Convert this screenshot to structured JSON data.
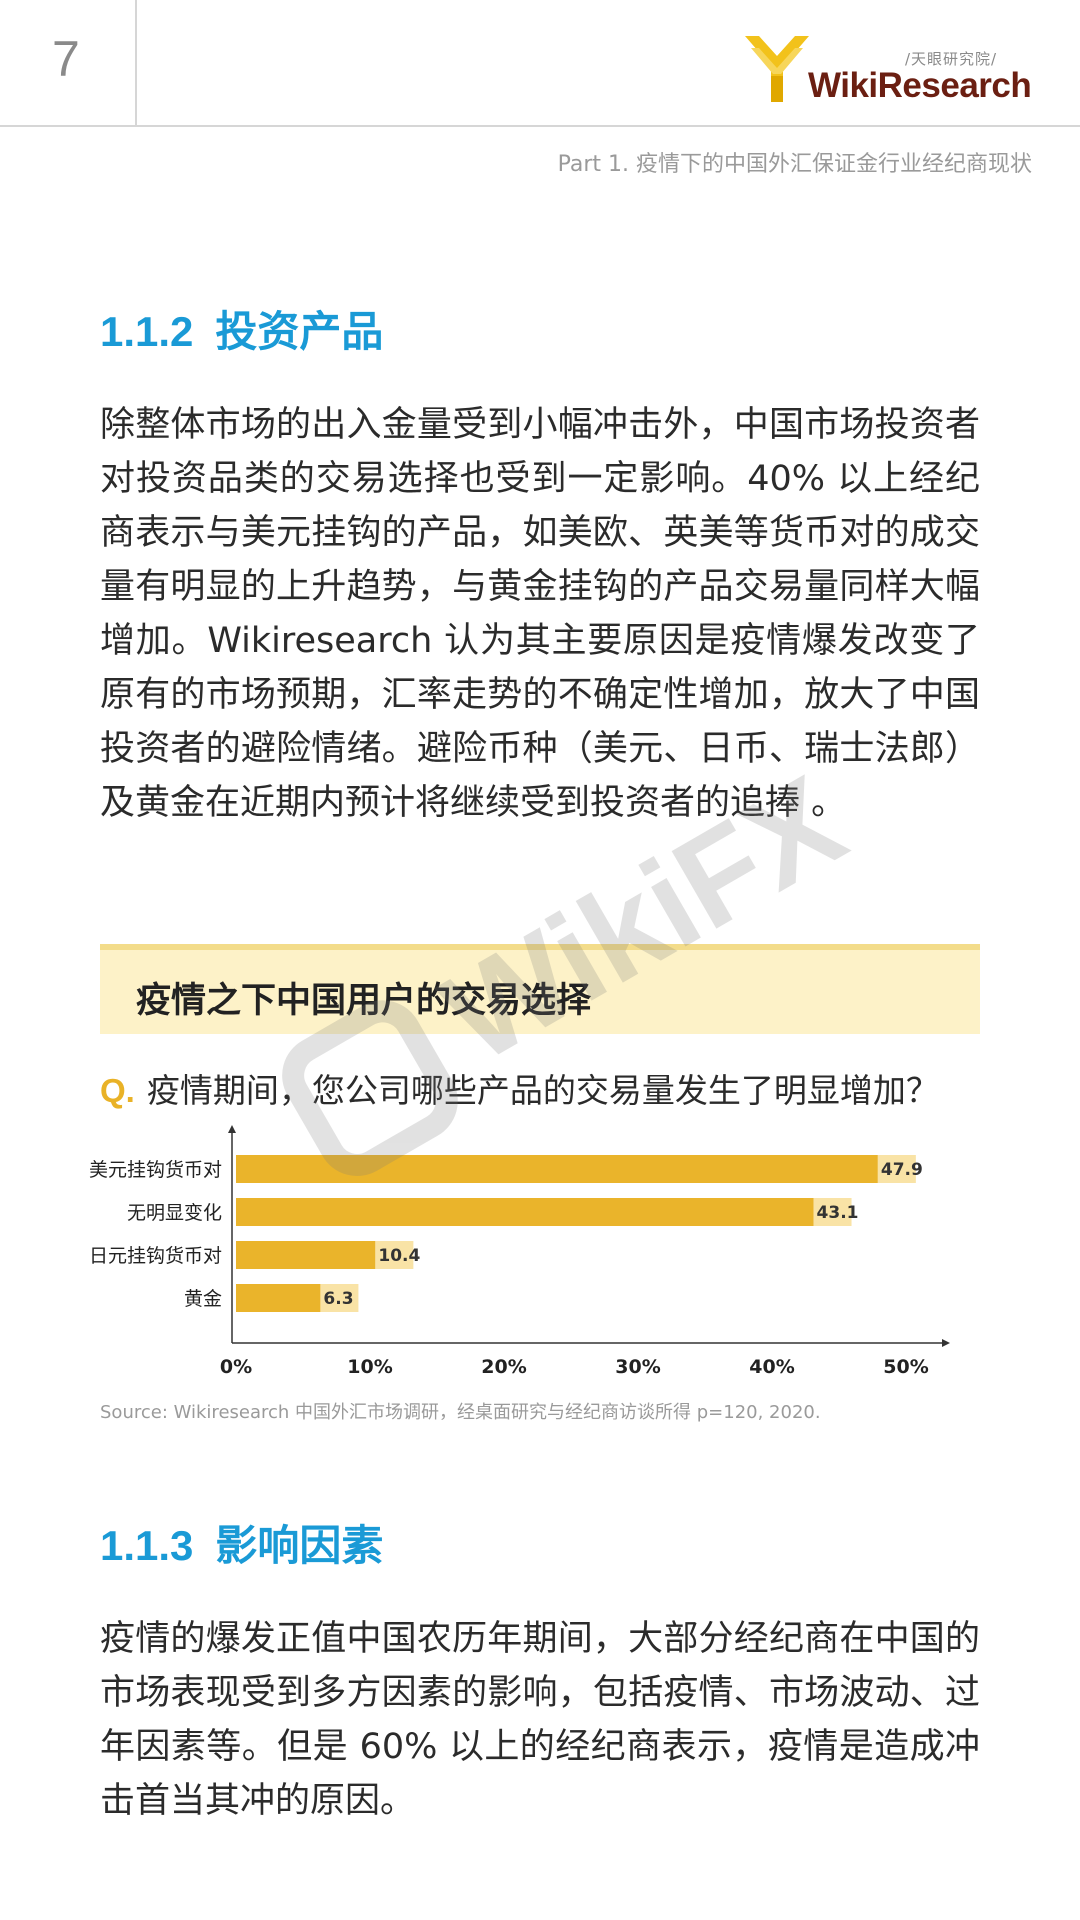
{
  "header": {
    "page_number": "7",
    "logo_sub": "/天眼研究院/",
    "logo_text": "WikiResearch",
    "part_title": "Part 1. 疫情下的中国外汇保证金行业经纪商现状"
  },
  "section_1": {
    "number": "1.1.2",
    "title": "投资产品",
    "paragraph": "除整体市场的出入金量受到小幅冲击外，中国市场投资者对投资品类的交易选择也受到一定影响。40% 以上经纪商表示与美元挂钩的产品，如美欧、英美等货币对的成交量有明显的上升趋势，与黄金挂钩的产品交易量同样大幅增加。Wikiresearch 认为其主要原因是疫情爆发改变了原有的市场预期，汇率走势的不确定性增加，放大了中国投资者的避险情绪。避险币种（美元、日币、瑞士法郎）及黄金在近期内预计将继续受到投资者的追捧 。"
  },
  "banner": {
    "title": "疫情之下中国用户的交易选择"
  },
  "question": {
    "mark": "Q.",
    "text": "疫情期间，您公司哪些产品的交易量发生了明显增加？"
  },
  "chart_data": {
    "type": "bar",
    "orientation": "horizontal",
    "categories": [
      "美元挂钩货币对",
      "无明显变化",
      "日元挂钩货币对",
      "黄金"
    ],
    "values": [
      47.9,
      43.1,
      10.4,
      6.3
    ],
    "value_labels": [
      "47.9",
      "43.1",
      "10.4",
      "6.3"
    ],
    "x_ticks": [
      "0%",
      "10%",
      "20%",
      "30%",
      "40%",
      "50%"
    ],
    "xlim": [
      0,
      50
    ],
    "bar_color": "#eab42b",
    "label_bg_color": "#f9e3a6",
    "title": "",
    "xlabel": "",
    "ylabel": ""
  },
  "source": "Source: Wikiresearch 中国外汇市场调研，经桌面研究与经纪商访谈所得 p=120, 2020.",
  "section_2": {
    "number": "1.1.3",
    "title": "影响因素",
    "paragraph": "疫情的爆发正值中国农历年期间，大部分经纪商在中国的市场表现受到多方因素的影响，包括疫情、市场波动、过年因素等。但是 60% 以上的经纪商表示，疫情是造成冲击首当其冲的原因。"
  },
  "watermark": {
    "text": "WikiFX"
  },
  "colors": {
    "accent_blue": "#1a9ad6",
    "gold": "#eab42b",
    "logo_dark": "#6b1f12"
  }
}
